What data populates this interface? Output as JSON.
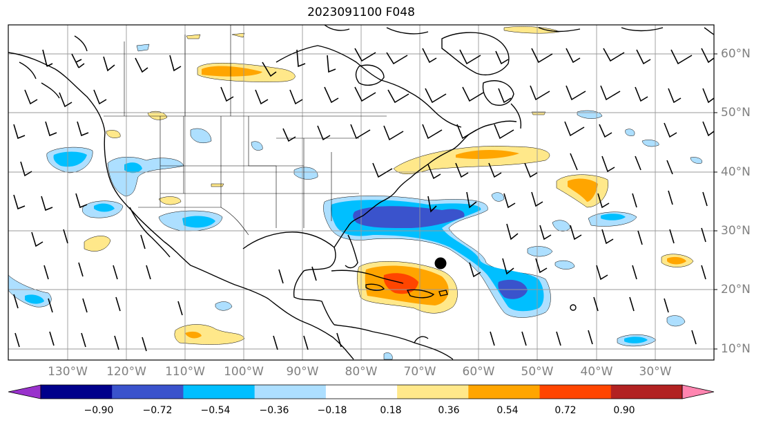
{
  "title": "2023091100 F048",
  "lat_labels": [
    "60°N",
    "50°N",
    "40°N",
    "30°N",
    "20°N",
    "10°N"
  ],
  "lon_labels": [
    "130°W",
    "120°W",
    "110°W",
    "100°W",
    "90°W",
    "80°W",
    "70°W",
    "60°W",
    "50°W",
    "40°W",
    "30°W"
  ],
  "colorbar": {
    "ticks": [
      "−0.90",
      "−0.72",
      "−0.54",
      "−0.36",
      "−0.18",
      "0.18",
      "0.36",
      "0.54",
      "0.72",
      "0.90"
    ],
    "colors": [
      "#9932CC",
      "#00008B",
      "#3A53CC",
      "#00BFFF",
      "#ADDFFF",
      "#FFFFFF",
      "#FFE88A",
      "#FFA500",
      "#FF4500",
      "#B22222",
      "#FF85B0"
    ]
  },
  "map": {
    "grid": true,
    "land_color": "#FFFFFF",
    "coast_color": "#000000",
    "storm_marker": "black-dot"
  }
}
